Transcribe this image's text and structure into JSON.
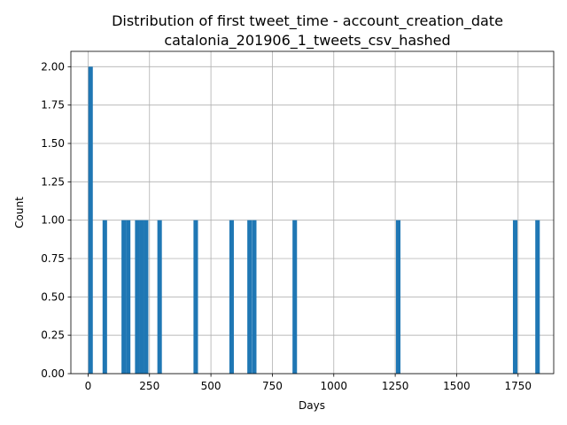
{
  "chart_data": {
    "type": "bar",
    "title": "Distribution of first tweet_time - account_creation_date",
    "subtitle": "catalonia_201906_1_tweets_csv_hashed",
    "xlabel": "Days",
    "ylabel": "Count",
    "xlim": [
      -70,
      1895
    ],
    "ylim": [
      0,
      2.1
    ],
    "grid": true,
    "color": "#1f77b4",
    "bin_width": 18.3,
    "xticks": [
      0,
      250,
      500,
      750,
      1000,
      1250,
      1500,
      1750
    ],
    "yticks": [
      "0.00",
      "0.25",
      "0.50",
      "0.75",
      "1.00",
      "1.25",
      "1.50",
      "1.75",
      "2.00"
    ],
    "bins": [
      {
        "x": 1,
        "count": 2
      },
      {
        "x": 59,
        "count": 1
      },
      {
        "x": 136,
        "count": 1
      },
      {
        "x": 154,
        "count": 1
      },
      {
        "x": 191,
        "count": 1
      },
      {
        "x": 209,
        "count": 1
      },
      {
        "x": 227,
        "count": 1
      },
      {
        "x": 282,
        "count": 1
      },
      {
        "x": 429,
        "count": 1
      },
      {
        "x": 575,
        "count": 1
      },
      {
        "x": 648,
        "count": 1
      },
      {
        "x": 667,
        "count": 1
      },
      {
        "x": 832,
        "count": 1
      },
      {
        "x": 1253,
        "count": 1
      },
      {
        "x": 1729,
        "count": 1
      },
      {
        "x": 1820,
        "count": 1
      }
    ]
  }
}
